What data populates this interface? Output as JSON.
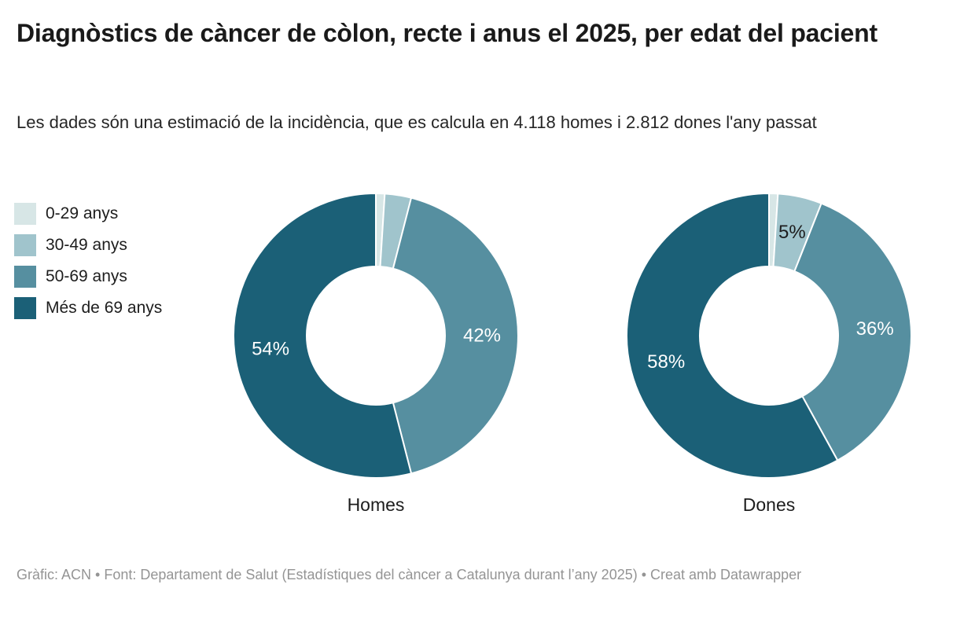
{
  "header": {
    "title": "Diagnòstics de càncer de còlon, recte i anus el 2025, per edat del pacient",
    "subtitle": "Les dades són una estimació de la incidència, que es calcula en 4.118 homes i 2.812 dones l'any passat"
  },
  "legend": {
    "items": [
      {
        "label": "0-29 anys",
        "color": "#d7e6e6"
      },
      {
        "label": "30-49 anys",
        "color": "#a0c4cc"
      },
      {
        "label": "50-69 anys",
        "color": "#568fa0"
      },
      {
        "label": "Més de 69 anys",
        "color": "#1b6077"
      }
    ]
  },
  "chart_data": {
    "type": "pie",
    "subtype": "donut-multiples",
    "categories": [
      "0-29 anys",
      "30-49 anys",
      "50-69 anys",
      "Més de 69 anys"
    ],
    "colors": [
      "#d7e6e6",
      "#a0c4cc",
      "#568fa0",
      "#1b6077"
    ],
    "legend_position": "left",
    "charts": [
      {
        "title": "Homes",
        "slices": [
          {
            "category": "0-29 anys",
            "value": 1,
            "label": "",
            "label_color": "#1d1d1d"
          },
          {
            "category": "30-49 anys",
            "value": 3,
            "label": "",
            "label_color": "#1d1d1d"
          },
          {
            "category": "50-69 anys",
            "value": 42,
            "label": "42%",
            "label_color": "#ffffff"
          },
          {
            "category": "Més de 69 anys",
            "value": 54,
            "label": "54%",
            "label_color": "#ffffff"
          }
        ]
      },
      {
        "title": "Dones",
        "slices": [
          {
            "category": "0-29 anys",
            "value": 1,
            "label": "",
            "label_color": "#1d1d1d"
          },
          {
            "category": "30-49 anys",
            "value": 5,
            "label": "5%",
            "label_color": "#1d1d1d"
          },
          {
            "category": "50-69 anys",
            "value": 36,
            "label": "36%",
            "label_color": "#ffffff"
          },
          {
            "category": "Més de 69 anys",
            "value": 58,
            "label": "58%",
            "label_color": "#ffffff"
          }
        ]
      }
    ]
  },
  "footer": {
    "credit": "Gràfic: ACN • Font: Departament de Salut (Estadístiques del càncer a Catalunya durant l’any 2025) • Creat amb Datawrapper"
  }
}
